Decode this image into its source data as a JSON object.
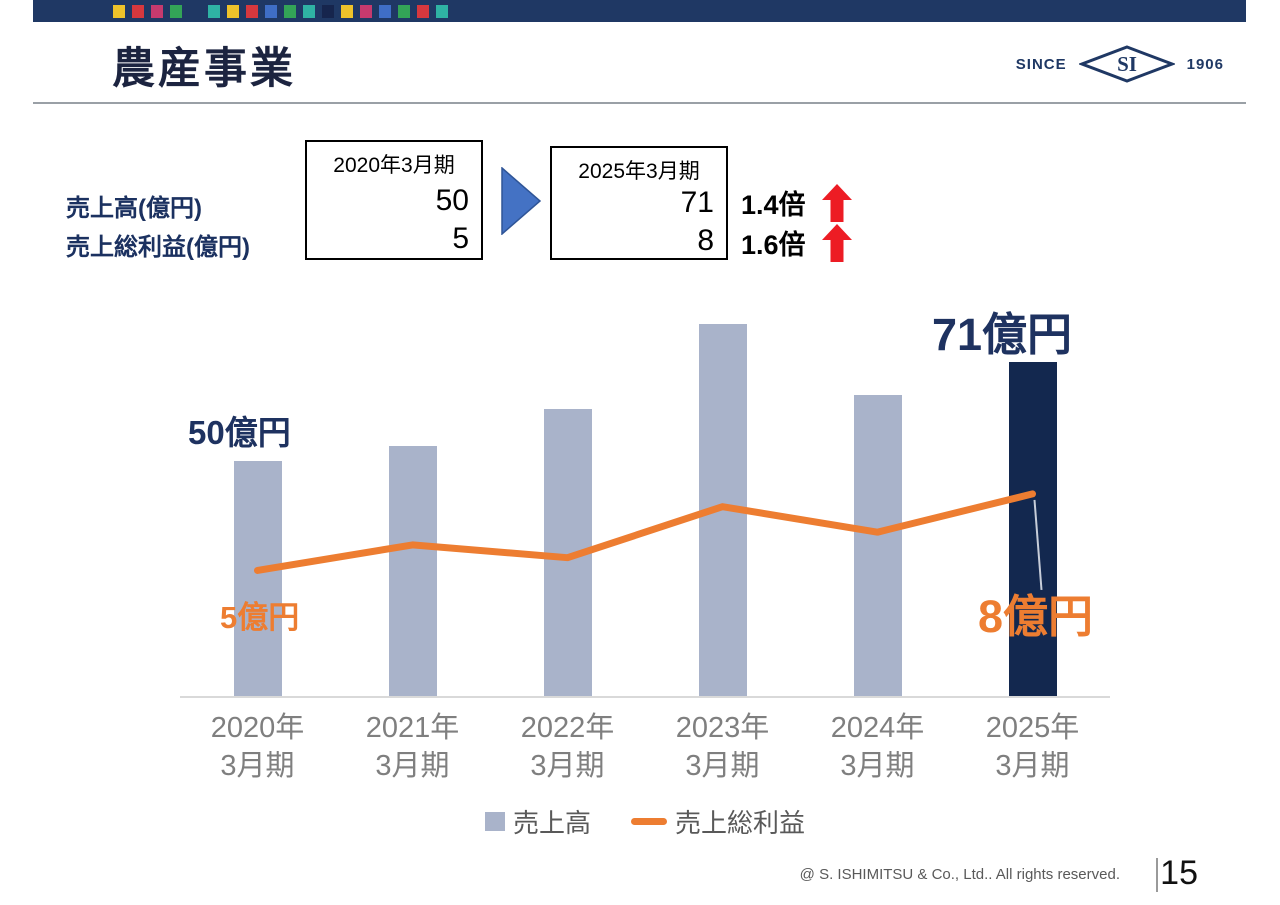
{
  "header": {
    "title": "農産事業",
    "logo": {
      "since": "SINCE",
      "initials": "SI",
      "year": "1906"
    }
  },
  "top_bar": {
    "background": "#1f3864",
    "squares": [
      "#eec32a",
      "#d6383e",
      "#c63a6e",
      "#33a457",
      "#1f3864",
      "#2fb3a4",
      "#eec32a",
      "#d6383e",
      "#3f6ec6",
      "#33a457",
      "#2fb3a4",
      "#16254d",
      "#eec32a",
      "#c63a6e",
      "#3f6ec6",
      "#33a457",
      "#d6383e",
      "#2fb3a4"
    ]
  },
  "comparison": {
    "row_labels": [
      "売上高(億円)",
      "売上総利益(億円)"
    ],
    "before": {
      "header": "2020年3月期",
      "values": [
        "50",
        "5"
      ]
    },
    "after": {
      "header": "2025年3月期",
      "values": [
        "71",
        "8"
      ]
    },
    "multipliers": [
      "1.4倍",
      "1.6倍"
    ],
    "flow_arrow_color": "#4472c4",
    "up_arrow_color": "#ed1c24"
  },
  "chart_data": {
    "type": "combo (bar + line)",
    "categories_line1": [
      "2020年",
      "2021年",
      "2022年",
      "2023年",
      "2024年",
      "2025年"
    ],
    "categories_line2": [
      "3月期",
      "3月期",
      "3月期",
      "3月期",
      "3月期",
      "3月期"
    ],
    "series": [
      {
        "name": "売上高",
        "type": "bar",
        "values": [
          50,
          53,
          61,
          79,
          64,
          71
        ],
        "color": "#a9b3ca",
        "highlight_index": 5,
        "highlight_color": "#13284f"
      },
      {
        "name": "売上総利益",
        "type": "line",
        "values": [
          5,
          6,
          5.5,
          7.5,
          6.5,
          8
        ],
        "color": "#ed7d31"
      }
    ],
    "bar_axis_range": [
      0,
      84.5
    ],
    "line_axis_range": [
      0,
      15.6
    ],
    "grid": false,
    "legend_position": "bottom",
    "annotations": {
      "bar_first": "50億円",
      "bar_last": "71億円",
      "line_first": "5億円",
      "line_last": "8億円"
    },
    "leader_line_color": "#c7cdd9"
  },
  "footer": {
    "copyright": "@ S. ISHIMITSU & Co., Ltd.. All rights reserved.",
    "page_number": "15"
  }
}
